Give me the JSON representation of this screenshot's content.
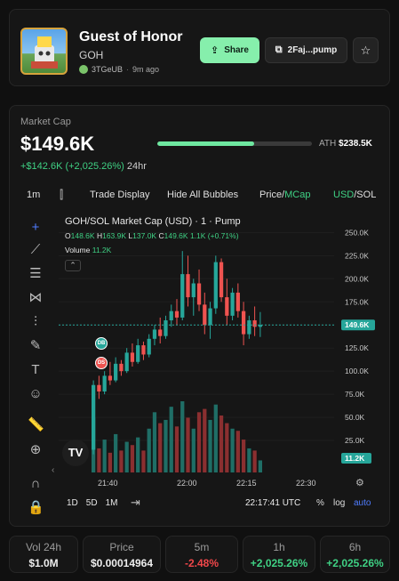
{
  "token": {
    "name": "Guest of Honor",
    "symbol": "GOH",
    "creator": "3TGeUB",
    "age": "9m ago",
    "share_label": "Share",
    "address_label": "2Faj...pump"
  },
  "market": {
    "label": "Market Cap",
    "value": "$149.6K",
    "change": "+$142.6K (+2,025.26%)",
    "period": "24hr",
    "ath_label": "ATH",
    "ath_value": "$238.5K",
    "ath_progress": 0.627
  },
  "toolbar": {
    "interval": "1m",
    "trade_display": "Trade Display",
    "hide_bubbles": "Hide All Bubbles",
    "price_label": "Price",
    "mcap_label": "MCap",
    "sep": "/",
    "usd_label": "USD",
    "sol_label": "SOL"
  },
  "chart_header": {
    "title": "GOH/SOL Market Cap (USD) · 1 · Pump",
    "o_key": "O",
    "o_val": "148.6K",
    "h_key": "H",
    "h_val": "163.9K",
    "l_key": "L",
    "l_val": "137.0K",
    "c_key": "C",
    "c_val": "149.6K",
    "chg": "1.1K (+0.71%)",
    "volume_label": "Volume",
    "volume_val": "11.2K"
  },
  "markers": {
    "db": "DB",
    "ds": "DS"
  },
  "bottom_bar": {
    "ranges": [
      "1D",
      "5D",
      "1M"
    ],
    "time": "22:17:41 UTC",
    "pct": "%",
    "log": "log",
    "auto": "auto"
  },
  "stats": [
    {
      "label": "Vol 24h",
      "value": "$1.0M"
    },
    {
      "label": "Price",
      "value": "$0.00014964"
    },
    {
      "label": "5m",
      "value": "-2.48%"
    },
    {
      "label": "1h",
      "value": "+2,025.26%"
    },
    {
      "label": "6h",
      "value": "+2,025.26%"
    }
  ],
  "colors": {
    "up": "#26a69a",
    "down": "#ef5350",
    "accent_green": "#3fd184",
    "share_bg": "#86efac",
    "auto_blue": "#4f7cff"
  },
  "chart_data": {
    "type": "candlestick",
    "title": "GOH/SOL Market Cap (USD) · 1 · Pump",
    "x_ticks": [
      "21:40",
      "22:00",
      "22:15",
      "22:30"
    ],
    "y_ticks": [
      "250.0K",
      "225.0K",
      "200.0K",
      "175.0K",
      "150.0K",
      "125.0K",
      "100.0K",
      "75.0K",
      "50.0K",
      "25.0K"
    ],
    "ylim": [
      0,
      260000
    ],
    "last_price_label": "149.6K",
    "last_volume_label": "11.2K",
    "candles": [
      {
        "o": 15,
        "h": 90,
        "l": 10,
        "c": 85
      },
      {
        "o": 85,
        "h": 95,
        "l": 70,
        "c": 78
      },
      {
        "o": 78,
        "h": 100,
        "l": 75,
        "c": 95
      },
      {
        "o": 95,
        "h": 110,
        "l": 85,
        "c": 90
      },
      {
        "o": 90,
        "h": 115,
        "l": 88,
        "c": 108
      },
      {
        "o": 108,
        "h": 112,
        "l": 95,
        "c": 100
      },
      {
        "o": 100,
        "h": 125,
        "l": 98,
        "c": 120
      },
      {
        "o": 120,
        "h": 130,
        "l": 105,
        "c": 110
      },
      {
        "o": 110,
        "h": 135,
        "l": 108,
        "c": 128
      },
      {
        "o": 128,
        "h": 132,
        "l": 112,
        "c": 118
      },
      {
        "o": 118,
        "h": 140,
        "l": 115,
        "c": 135
      },
      {
        "o": 135,
        "h": 150,
        "l": 128,
        "c": 145
      },
      {
        "o": 145,
        "h": 158,
        "l": 130,
        "c": 138
      },
      {
        "o": 138,
        "h": 160,
        "l": 135,
        "c": 155
      },
      {
        "o": 155,
        "h": 172,
        "l": 148,
        "c": 165
      },
      {
        "o": 165,
        "h": 178,
        "l": 150,
        "c": 158
      },
      {
        "o": 158,
        "h": 230,
        "l": 155,
        "c": 205
      },
      {
        "o": 205,
        "h": 225,
        "l": 170,
        "c": 180
      },
      {
        "o": 180,
        "h": 200,
        "l": 160,
        "c": 195
      },
      {
        "o": 195,
        "h": 210,
        "l": 165,
        "c": 172
      },
      {
        "o": 172,
        "h": 185,
        "l": 140,
        "c": 150
      },
      {
        "o": 150,
        "h": 175,
        "l": 135,
        "c": 168
      },
      {
        "o": 168,
        "h": 225,
        "l": 162,
        "c": 218
      },
      {
        "o": 218,
        "h": 222,
        "l": 175,
        "c": 180
      },
      {
        "o": 180,
        "h": 200,
        "l": 150,
        "c": 160
      },
      {
        "o": 160,
        "h": 190,
        "l": 155,
        "c": 185
      },
      {
        "o": 185,
        "h": 195,
        "l": 158,
        "c": 165
      },
      {
        "o": 165,
        "h": 175,
        "l": 128,
        "c": 140
      },
      {
        "o": 140,
        "h": 160,
        "l": 135,
        "c": 155
      },
      {
        "o": 155,
        "h": 170,
        "l": 138,
        "c": 148
      },
      {
        "o": 148,
        "h": 164,
        "l": 137,
        "c": 150
      }
    ],
    "volumes": [
      50,
      22,
      30,
      18,
      35,
      20,
      28,
      25,
      32,
      20,
      40,
      55,
      45,
      48,
      60,
      42,
      65,
      50,
      40,
      55,
      58,
      48,
      62,
      52,
      45,
      40,
      38,
      30,
      22,
      20,
      11
    ]
  }
}
